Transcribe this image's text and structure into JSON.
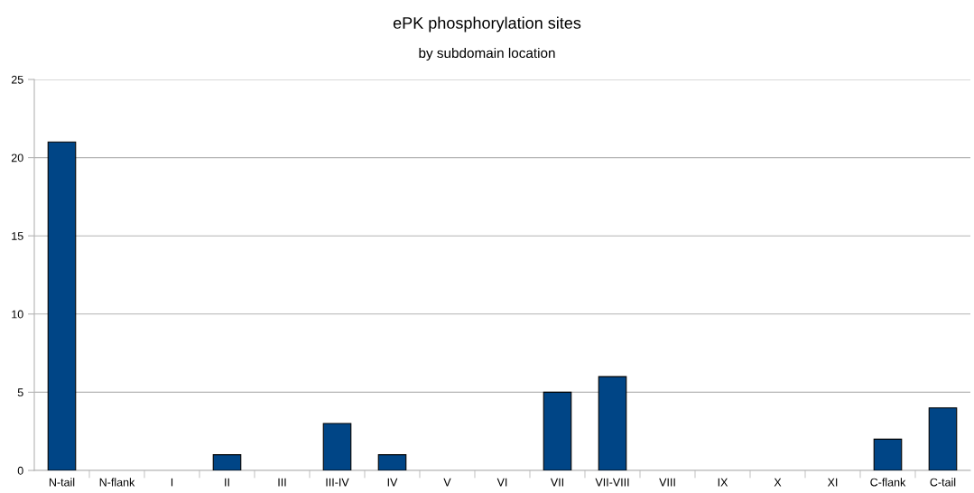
{
  "chart_data": {
    "type": "bar",
    "title": "ePK phosphorylation sites",
    "subtitle": "by subdomain location",
    "categories": [
      "N-tail",
      "N-flank",
      "I",
      "II",
      "III",
      "III-IV",
      "IV",
      "V",
      "VI",
      "VII",
      "VII-VIII",
      "VIII",
      "IX",
      "X",
      "XI",
      "C-flank",
      "C-tail"
    ],
    "values": [
      21,
      0,
      0,
      1,
      0,
      3,
      1,
      0,
      0,
      5,
      6,
      0,
      0,
      0,
      0,
      2,
      4
    ],
    "color": "#004586",
    "ylim": [
      0,
      25
    ],
    "yticks": [
      0,
      5,
      10,
      15,
      20,
      25
    ],
    "grid": "y"
  }
}
